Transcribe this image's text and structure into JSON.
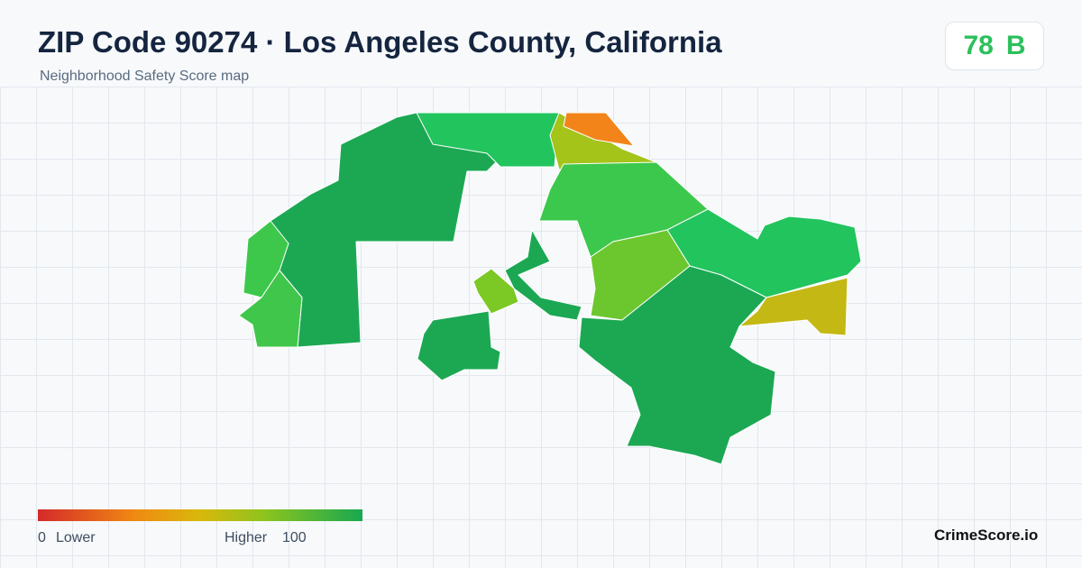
{
  "header": {
    "title": "ZIP Code 90274 · Los Angeles County, California",
    "subtitle": "Neighborhood Safety Score map"
  },
  "score": {
    "value": 78,
    "grade": "B"
  },
  "legend": {
    "min": 0,
    "low_label": "Lower",
    "high_label": "Higher",
    "max": 100
  },
  "brand": "CrimeScore.io"
}
